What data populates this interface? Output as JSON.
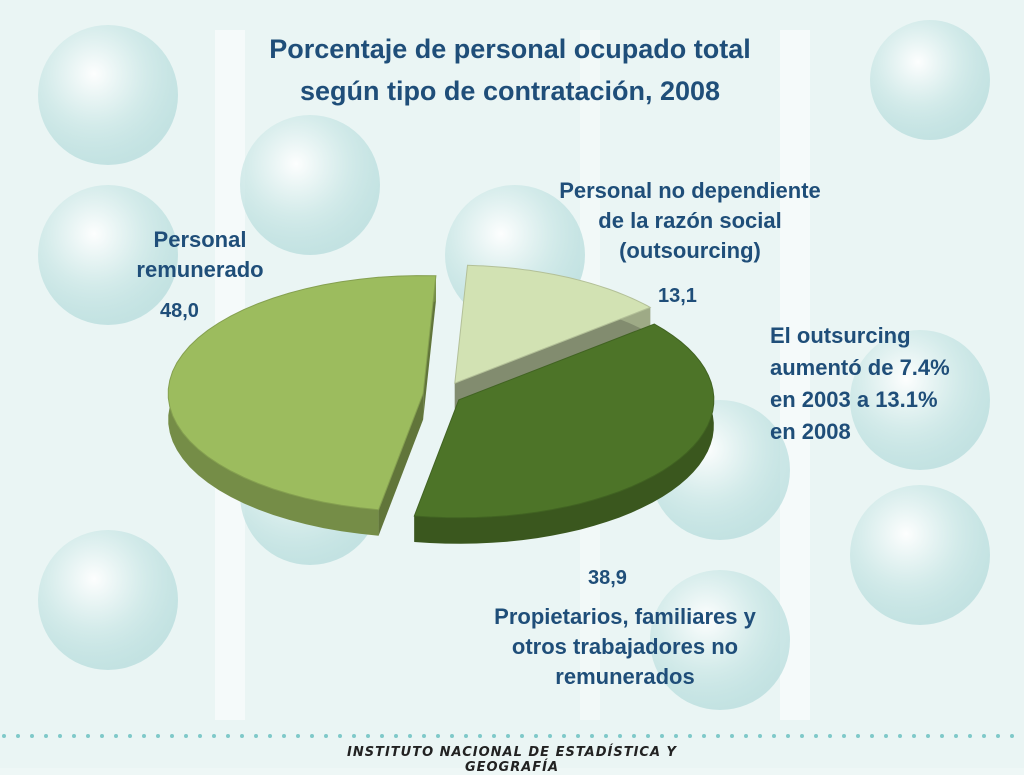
{
  "slide": {
    "title_line1": "Porcentaje de personal ocupado total",
    "title_line2": "según tipo de contratación, 2008",
    "note_lines": [
      "El outsurcing",
      "aumentó de 7.4%",
      "en 2003 a 13.1%",
      "en 2008"
    ],
    "footer": "INSTITUTO NACIONAL DE ESTADÍSTICA Y GEOGRAFÍA"
  },
  "chart_data": {
    "type": "pie",
    "title": "Porcentaje de personal ocupado total según tipo de contratación, 2008",
    "series": [
      {
        "name": "Personal remunerado",
        "label_lines": [
          "Personal",
          "remunerado"
        ],
        "value_text": "48,0",
        "value": 48.0,
        "color": "#9cbc5e"
      },
      {
        "name": "Personal no dependiente de la razón social (outsourcing)",
        "label_lines": [
          "Personal no dependiente",
          "de la razón social",
          "(outsourcing)"
        ],
        "value_text": "13,1",
        "value": 13.1,
        "color": "#d2e2b3"
      },
      {
        "name": "Propietarios, familiares y otros trabajadores no remunerados",
        "label_lines": [
          "Propietarios, familiares y",
          "otros trabajadores no",
          "remunerados"
        ],
        "value_text": "38,9",
        "value": 38.9,
        "color": "#4d7428"
      }
    ]
  }
}
